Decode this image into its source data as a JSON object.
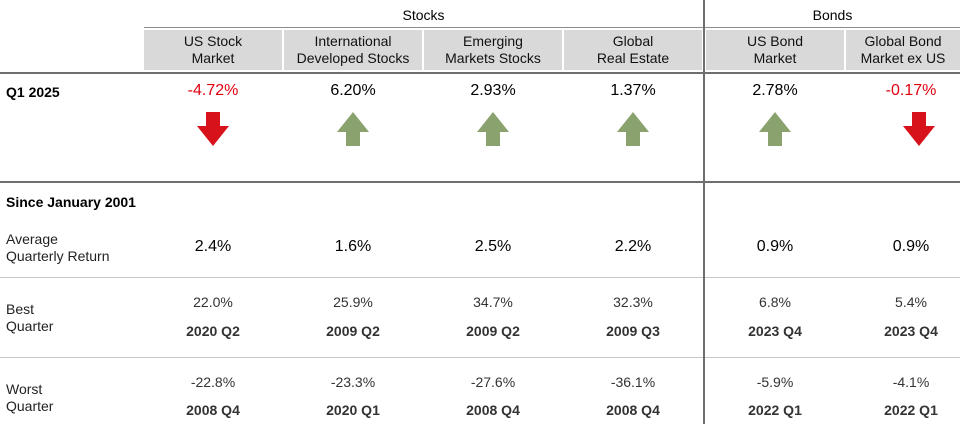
{
  "groups": {
    "stocks": "Stocks",
    "bonds": "Bonds"
  },
  "columns": [
    {
      "line1": "US Stock",
      "line2": "Market"
    },
    {
      "line1": "International",
      "line2": "Developed Stocks"
    },
    {
      "line1": "Emerging",
      "line2": "Markets Stocks"
    },
    {
      "line1": "Global",
      "line2": "Real Estate"
    },
    {
      "line1": "US Bond",
      "line2": "Market"
    },
    {
      "line1": "Global Bond",
      "line2": "Market ex US"
    }
  ],
  "q1": {
    "label": "Q1 2025",
    "values": [
      "-4.72%",
      "6.20%",
      "2.93%",
      "1.37%",
      "2.78%",
      "-0.17%"
    ],
    "directions": [
      "down",
      "up",
      "up",
      "up",
      "up",
      "down"
    ]
  },
  "since": {
    "label": "Since January 2001"
  },
  "average": {
    "label_line1": "Average",
    "label_line2": "Quarterly Return",
    "values": [
      "2.4%",
      "1.6%",
      "2.5%",
      "2.2%",
      "0.9%",
      "0.9%"
    ]
  },
  "best": {
    "label_line1": "Best",
    "label_line2": "Quarter",
    "values": [
      "22.0%",
      "25.9%",
      "34.7%",
      "32.3%",
      "6.8%",
      "5.4%"
    ],
    "quarters": [
      "2020 Q2",
      "2009 Q2",
      "2009 Q2",
      "2009 Q3",
      "2023 Q4",
      "2023 Q4"
    ]
  },
  "worst": {
    "label_line1": "Worst",
    "label_line2": "Quarter",
    "values": [
      "-22.8%",
      "-23.3%",
      "-27.6%",
      "-36.1%",
      "-5.9%",
      "-4.1%"
    ],
    "quarters": [
      "2008 Q4",
      "2020 Q1",
      "2008 Q4",
      "2008 Q4",
      "2022 Q1",
      "2022 Q1"
    ]
  },
  "colors": {
    "negative": "#e0000f",
    "down_arrow": "#d8121a",
    "up_arrow": "#8aa36e",
    "header_bg": "#d9d9d9"
  }
}
